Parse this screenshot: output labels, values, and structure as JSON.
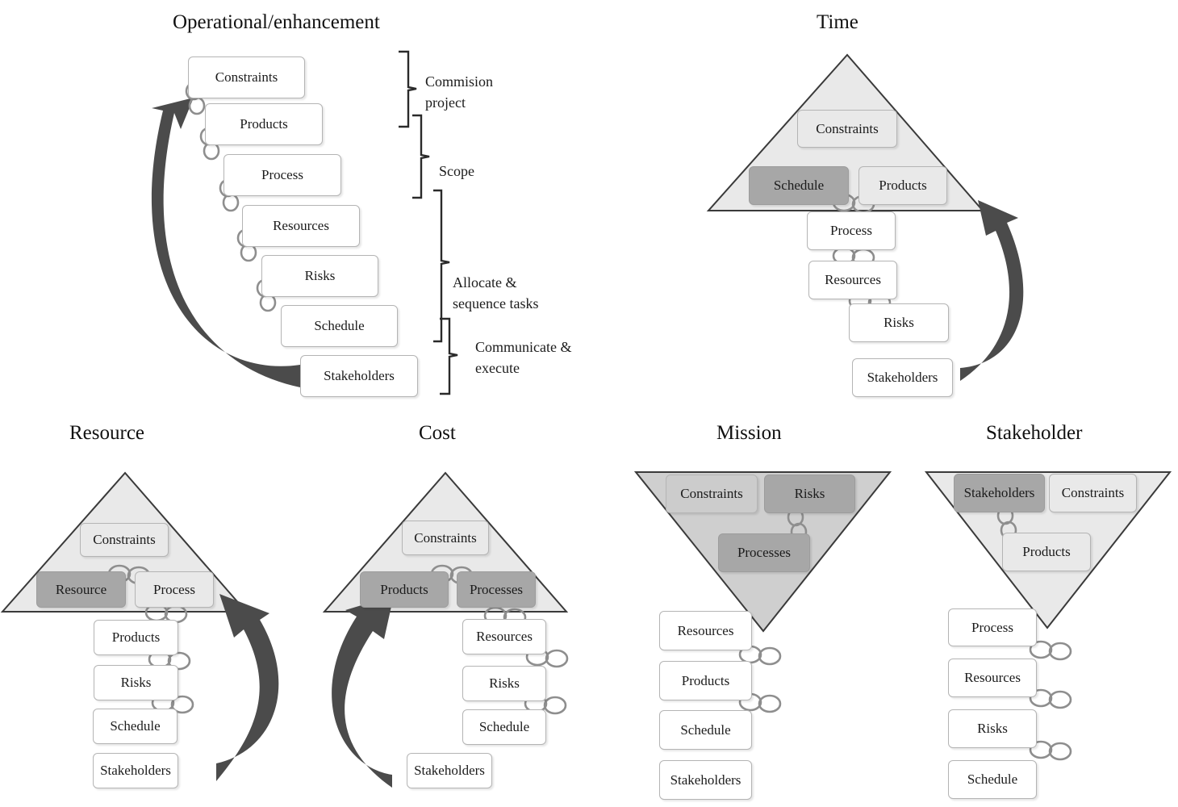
{
  "colors": {
    "triangle_fill": "#e9e9e9",
    "triangle_stroke": "#3a3a3a",
    "mission_triangle_fill": "#cfcfcf",
    "highlight_box": "#a7a7a7",
    "arrow": "#4b4b4b",
    "link_icon": "#8e8e8e"
  },
  "operational": {
    "title": "Operational/enhancement",
    "boxes": [
      "Constraints",
      "Products",
      "Process",
      "Resources",
      "Risks",
      "Schedule",
      "Stakeholders"
    ],
    "brackets": [
      {
        "line1": "Commision",
        "line2": "project"
      },
      {
        "line1": "Scope",
        "line2": ""
      },
      {
        "line1": "Allocate &",
        "line2": "sequence tasks"
      },
      {
        "line1": "Communicate &",
        "line2": "execute"
      }
    ]
  },
  "time": {
    "title": "Time",
    "boxes": {
      "constraints": "Constraints",
      "schedule": "Schedule",
      "products": "Products",
      "process": "Process",
      "resources": "Resources",
      "risks": "Risks",
      "stakeholders": "Stakeholders"
    }
  },
  "resource": {
    "title": "Resource",
    "boxes": {
      "constraints": "Constraints",
      "resource": "Resource",
      "process": "Process",
      "products": "Products",
      "risks": "Risks",
      "schedule": "Schedule",
      "stakeholders": "Stakeholders"
    }
  },
  "cost": {
    "title": "Cost",
    "boxes": {
      "constraints": "Constraints",
      "products": "Products",
      "processes": "Processes",
      "resources": "Resources",
      "risks": "Risks",
      "schedule": "Schedule",
      "stakeholders": "Stakeholders"
    }
  },
  "mission": {
    "title": "Mission",
    "boxes": {
      "constraints": "Constraints",
      "risks": "Risks",
      "processes": "Processes",
      "resources": "Resources",
      "products": "Products",
      "schedule": "Schedule",
      "stakeholders": "Stakeholders"
    }
  },
  "stakeholder": {
    "title": "Stakeholder",
    "boxes": {
      "stakeholders": "Stakeholders",
      "constraints": "Constraints",
      "products": "Products",
      "process": "Process",
      "resources": "Resources",
      "risks": "Risks",
      "schedule": "Schedule"
    }
  }
}
